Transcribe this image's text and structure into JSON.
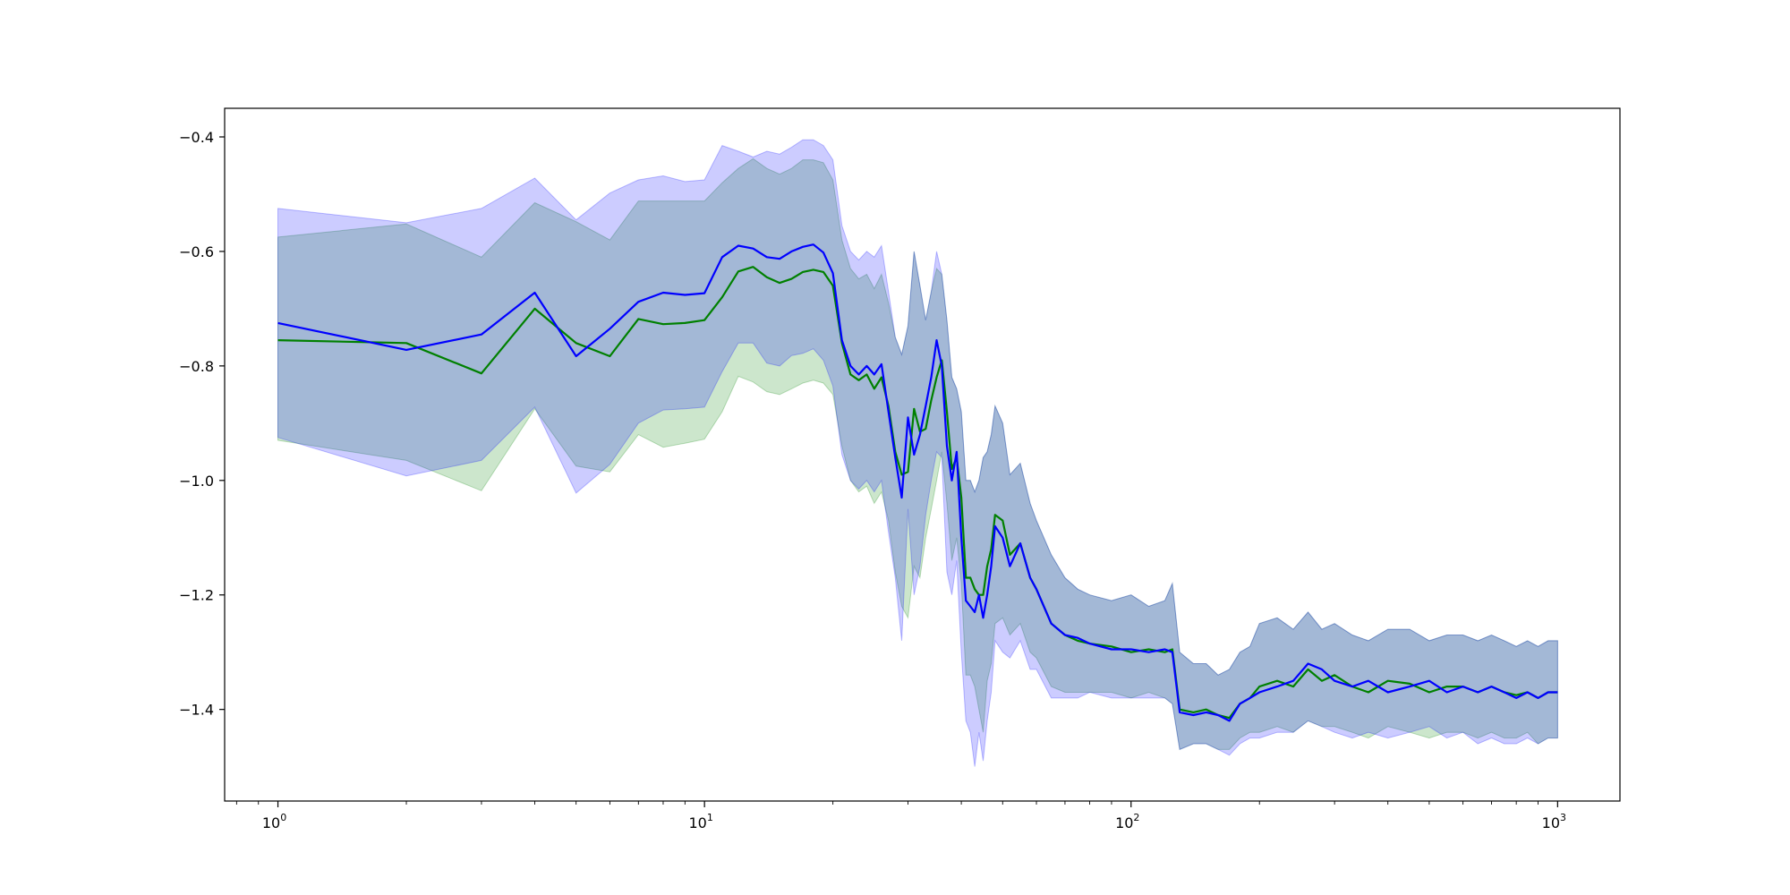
{
  "chart_data": {
    "type": "line",
    "title": "",
    "xlabel": "",
    "ylabel": "",
    "xscale": "log",
    "xlim": [
      0.75,
      1400
    ],
    "ylim": [
      -1.56,
      -0.35
    ],
    "grid": false,
    "legend": "none",
    "x_ticks": [
      {
        "value": 1,
        "base": "10",
        "exp": "0"
      },
      {
        "value": 10,
        "base": "10",
        "exp": "1"
      },
      {
        "value": 100,
        "base": "10",
        "exp": "2"
      },
      {
        "value": 1000,
        "base": "10",
        "exp": "3"
      }
    ],
    "y_ticks": [
      {
        "value": -0.4,
        "label": "−0.4"
      },
      {
        "value": -0.6,
        "label": "−0.6"
      },
      {
        "value": -0.8,
        "label": "−0.8"
      },
      {
        "value": -1.0,
        "label": "−1.0"
      },
      {
        "value": -1.2,
        "label": "−1.2"
      },
      {
        "value": -1.4,
        "label": "−1.4"
      }
    ],
    "series": [
      {
        "color": "#008000",
        "band_color": "#008000",
        "band_opacity": 0.2,
        "x": [
          1,
          2,
          3,
          4,
          5,
          6,
          7,
          8,
          9,
          10,
          11,
          12,
          13,
          14,
          15,
          16,
          17,
          18,
          19,
          20,
          21,
          22,
          23,
          24,
          25,
          26,
          27,
          28,
          29,
          30,
          31,
          32,
          33,
          34,
          35,
          36,
          37,
          38,
          39,
          40,
          41,
          42,
          43,
          44,
          45,
          46,
          47,
          48,
          50,
          52,
          55,
          58,
          60,
          65,
          70,
          75,
          80,
          90,
          100,
          110,
          120,
          125,
          130,
          140,
          150,
          160,
          170,
          180,
          190,
          200,
          220,
          240,
          260,
          280,
          300,
          330,
          360,
          400,
          450,
          500,
          550,
          600,
          650,
          700,
          750,
          800,
          850,
          900,
          950,
          1000
        ],
        "y": [
          -0.755,
          -0.76,
          -0.813,
          -0.7,
          -0.76,
          -0.783,
          -0.718,
          -0.727,
          -0.725,
          -0.72,
          -0.68,
          -0.635,
          -0.627,
          -0.645,
          -0.655,
          -0.648,
          -0.636,
          -0.632,
          -0.636,
          -0.66,
          -0.76,
          -0.815,
          -0.825,
          -0.815,
          -0.84,
          -0.82,
          -0.87,
          -0.95,
          -0.99,
          -0.985,
          -0.875,
          -0.915,
          -0.91,
          -0.86,
          -0.82,
          -0.79,
          -0.88,
          -0.98,
          -0.96,
          -1.03,
          -1.17,
          -1.17,
          -1.19,
          -1.2,
          -1.2,
          -1.15,
          -1.12,
          -1.06,
          -1.07,
          -1.13,
          -1.11,
          -1.17,
          -1.19,
          -1.25,
          -1.27,
          -1.28,
          -1.285,
          -1.29,
          -1.3,
          -1.295,
          -1.3,
          -1.295,
          -1.4,
          -1.405,
          -1.4,
          -1.41,
          -1.415,
          -1.39,
          -1.38,
          -1.36,
          -1.35,
          -1.36,
          -1.33,
          -1.35,
          -1.34,
          -1.36,
          -1.37,
          -1.35,
          -1.355,
          -1.37,
          -1.36,
          -1.36,
          -1.37,
          -1.36,
          -1.37,
          -1.375,
          -1.37,
          -1.38,
          -1.37,
          -1.37
        ],
        "upper": [
          -0.575,
          -0.552,
          -0.61,
          -0.515,
          -0.548,
          -0.58,
          -0.512,
          -0.512,
          -0.512,
          -0.512,
          -0.48,
          -0.455,
          -0.438,
          -0.455,
          -0.465,
          -0.455,
          -0.44,
          -0.44,
          -0.445,
          -0.475,
          -0.58,
          -0.63,
          -0.648,
          -0.64,
          -0.665,
          -0.64,
          -0.69,
          -0.75,
          -0.78,
          -0.73,
          -0.6,
          -0.66,
          -0.72,
          -0.67,
          -0.63,
          -0.64,
          -0.72,
          -0.82,
          -0.84,
          -0.88,
          -1.0,
          -1.0,
          -1.02,
          -1.0,
          -0.96,
          -0.95,
          -0.92,
          -0.87,
          -0.9,
          -0.99,
          -0.97,
          -1.04,
          -1.07,
          -1.13,
          -1.17,
          -1.19,
          -1.2,
          -1.21,
          -1.2,
          -1.22,
          -1.21,
          -1.18,
          -1.3,
          -1.32,
          -1.32,
          -1.34,
          -1.33,
          -1.3,
          -1.29,
          -1.25,
          -1.24,
          -1.26,
          -1.23,
          -1.26,
          -1.25,
          -1.27,
          -1.28,
          -1.26,
          -1.26,
          -1.28,
          -1.27,
          -1.27,
          -1.28,
          -1.27,
          -1.28,
          -1.29,
          -1.28,
          -1.29,
          -1.28,
          -1.28
        ],
        "lower": [
          -0.93,
          -0.965,
          -1.018,
          -0.875,
          -0.975,
          -0.985,
          -0.92,
          -0.942,
          -0.935,
          -0.928,
          -0.88,
          -0.818,
          -0.828,
          -0.845,
          -0.85,
          -0.84,
          -0.83,
          -0.825,
          -0.83,
          -0.85,
          -0.94,
          -1.0,
          -1.02,
          -1.01,
          -1.04,
          -1.02,
          -1.07,
          -1.16,
          -1.22,
          -1.24,
          -1.15,
          -1.17,
          -1.1,
          -1.05,
          -1.0,
          -0.95,
          -1.04,
          -1.14,
          -1.1,
          -1.18,
          -1.34,
          -1.34,
          -1.36,
          -1.4,
          -1.44,
          -1.35,
          -1.32,
          -1.25,
          -1.24,
          -1.27,
          -1.25,
          -1.3,
          -1.31,
          -1.36,
          -1.37,
          -1.37,
          -1.37,
          -1.37,
          -1.38,
          -1.37,
          -1.38,
          -1.39,
          -1.47,
          -1.46,
          -1.46,
          -1.47,
          -1.47,
          -1.45,
          -1.44,
          -1.44,
          -1.43,
          -1.44,
          -1.42,
          -1.43,
          -1.43,
          -1.44,
          -1.45,
          -1.43,
          -1.44,
          -1.45,
          -1.44,
          -1.44,
          -1.45,
          -1.44,
          -1.45,
          -1.45,
          -1.44,
          -1.46,
          -1.45,
          -1.45
        ]
      },
      {
        "color": "#0000ff",
        "band_color": "#0000ff",
        "band_opacity": 0.2,
        "x": [
          1,
          2,
          3,
          4,
          5,
          6,
          7,
          8,
          9,
          10,
          11,
          12,
          13,
          14,
          15,
          16,
          17,
          18,
          19,
          20,
          21,
          22,
          23,
          24,
          25,
          26,
          27,
          28,
          29,
          30,
          31,
          32,
          33,
          34,
          35,
          36,
          37,
          38,
          39,
          40,
          41,
          42,
          43,
          44,
          45,
          46,
          47,
          48,
          50,
          52,
          55,
          58,
          60,
          65,
          70,
          75,
          80,
          90,
          100,
          110,
          120,
          125,
          130,
          140,
          150,
          160,
          170,
          180,
          190,
          200,
          220,
          240,
          260,
          280,
          300,
          330,
          360,
          400,
          450,
          500,
          550,
          600,
          650,
          700,
          750,
          800,
          850,
          900,
          950,
          1000
        ],
        "y": [
          -0.725,
          -0.772,
          -0.745,
          -0.672,
          -0.783,
          -0.735,
          -0.688,
          -0.672,
          -0.676,
          -0.673,
          -0.61,
          -0.59,
          -0.595,
          -0.61,
          -0.613,
          -0.6,
          -0.592,
          -0.588,
          -0.602,
          -0.638,
          -0.755,
          -0.8,
          -0.815,
          -0.8,
          -0.815,
          -0.797,
          -0.88,
          -0.96,
          -1.03,
          -0.89,
          -0.955,
          -0.92,
          -0.87,
          -0.82,
          -0.755,
          -0.8,
          -0.94,
          -1.0,
          -0.95,
          -1.1,
          -1.21,
          -1.22,
          -1.23,
          -1.2,
          -1.24,
          -1.2,
          -1.15,
          -1.08,
          -1.1,
          -1.15,
          -1.11,
          -1.17,
          -1.19,
          -1.25,
          -1.27,
          -1.275,
          -1.285,
          -1.295,
          -1.295,
          -1.3,
          -1.295,
          -1.3,
          -1.405,
          -1.41,
          -1.405,
          -1.41,
          -1.42,
          -1.39,
          -1.38,
          -1.37,
          -1.36,
          -1.35,
          -1.32,
          -1.33,
          -1.35,
          -1.36,
          -1.35,
          -1.37,
          -1.36,
          -1.35,
          -1.37,
          -1.36,
          -1.37,
          -1.36,
          -1.37,
          -1.38,
          -1.37,
          -1.38,
          -1.37,
          -1.37
        ],
        "upper": [
          -0.525,
          -0.55,
          -0.525,
          -0.472,
          -0.545,
          -0.498,
          -0.475,
          -0.468,
          -0.478,
          -0.475,
          -0.415,
          -0.425,
          -0.435,
          -0.425,
          -0.43,
          -0.418,
          -0.405,
          -0.405,
          -0.415,
          -0.44,
          -0.555,
          -0.6,
          -0.615,
          -0.6,
          -0.61,
          -0.59,
          -0.67,
          -0.75,
          -0.78,
          -0.73,
          -0.6,
          -0.66,
          -0.72,
          -0.67,
          -0.6,
          -0.64,
          -0.72,
          -0.82,
          -0.84,
          -0.88,
          -1.0,
          -1.0,
          -1.02,
          -1.0,
          -0.96,
          -0.95,
          -0.92,
          -0.87,
          -0.9,
          -0.99,
          -0.97,
          -1.04,
          -1.07,
          -1.13,
          -1.17,
          -1.19,
          -1.2,
          -1.21,
          -1.2,
          -1.22,
          -1.21,
          -1.18,
          -1.3,
          -1.32,
          -1.32,
          -1.34,
          -1.33,
          -1.3,
          -1.29,
          -1.25,
          -1.24,
          -1.26,
          -1.23,
          -1.26,
          -1.25,
          -1.27,
          -1.28,
          -1.26,
          -1.26,
          -1.28,
          -1.27,
          -1.27,
          -1.28,
          -1.27,
          -1.28,
          -1.29,
          -1.28,
          -1.29,
          -1.28,
          -1.28
        ],
        "lower": [
          -0.925,
          -0.992,
          -0.965,
          -0.872,
          -1.022,
          -0.972,
          -0.9,
          -0.877,
          -0.875,
          -0.872,
          -0.81,
          -0.76,
          -0.76,
          -0.795,
          -0.8,
          -0.782,
          -0.778,
          -0.77,
          -0.79,
          -0.835,
          -0.955,
          -1.0,
          -1.015,
          -1.0,
          -1.02,
          -1.0,
          -1.09,
          -1.17,
          -1.28,
          -1.05,
          -1.2,
          -1.15,
          -1.06,
          -1.0,
          -0.95,
          -0.96,
          -1.16,
          -1.2,
          -1.14,
          -1.3,
          -1.42,
          -1.44,
          -1.5,
          -1.44,
          -1.49,
          -1.42,
          -1.37,
          -1.28,
          -1.3,
          -1.31,
          -1.28,
          -1.33,
          -1.33,
          -1.38,
          -1.38,
          -1.38,
          -1.37,
          -1.38,
          -1.38,
          -1.38,
          -1.38,
          -1.39,
          -1.47,
          -1.46,
          -1.46,
          -1.47,
          -1.48,
          -1.46,
          -1.45,
          -1.45,
          -1.44,
          -1.44,
          -1.42,
          -1.43,
          -1.44,
          -1.45,
          -1.44,
          -1.45,
          -1.44,
          -1.43,
          -1.45,
          -1.44,
          -1.46,
          -1.45,
          -1.46,
          -1.46,
          -1.45,
          -1.46,
          -1.45,
          -1.45
        ]
      }
    ]
  }
}
